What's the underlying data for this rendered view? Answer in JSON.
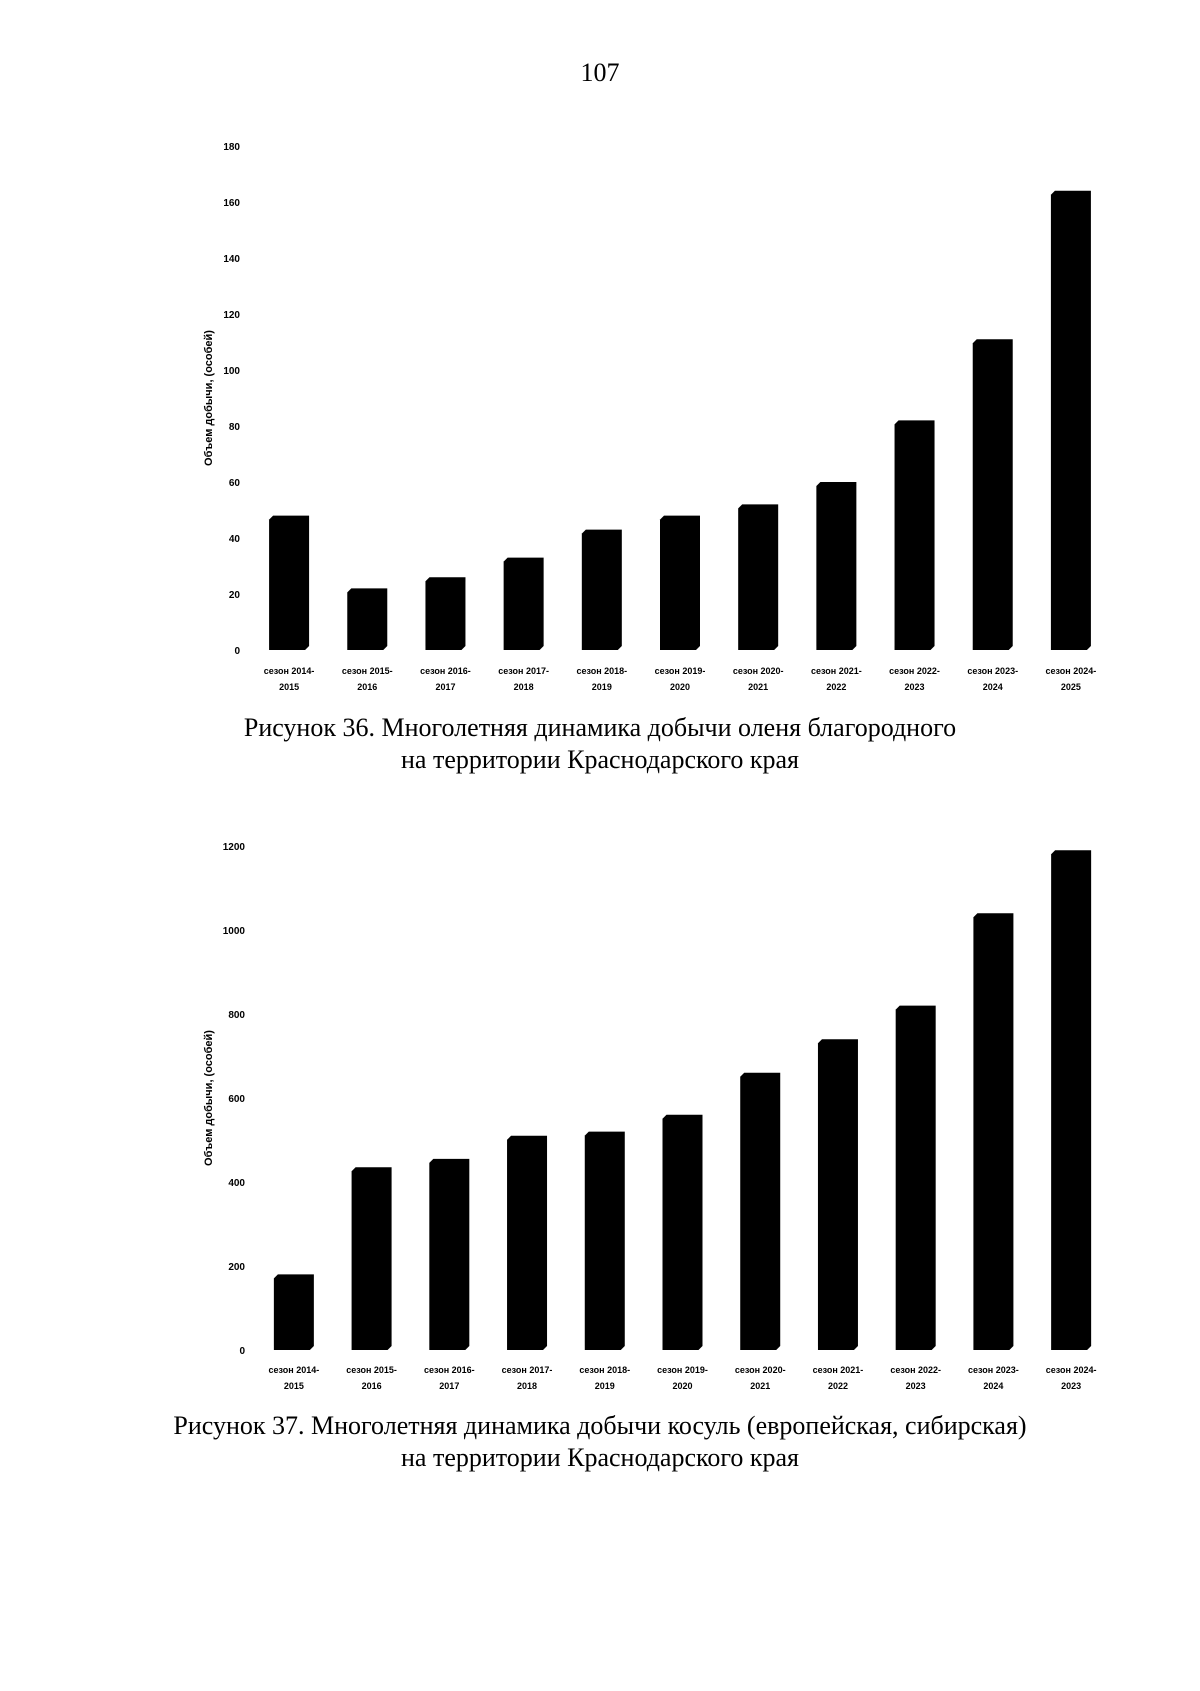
{
  "page_number": "107",
  "figures": [
    {
      "caption_line1": "Рисунок 36. Многолетняя динамика добычи оленя благородного",
      "caption_line2": "на территории Краснодарского края"
    },
    {
      "caption_line1": "Рисунок 37. Многолетняя динамика добычи косуль (европейская, сибирская)",
      "caption_line2": "на территории Краснодарского края"
    }
  ],
  "chart_data": [
    {
      "type": "bar",
      "title": "",
      "ylabel": "Объем добычи, (особей)",
      "xlabel": "",
      "ylim": [
        0,
        180
      ],
      "yticks": [
        "0",
        "20",
        "40",
        "60",
        "80",
        "100",
        "120",
        "140",
        "160",
        "180"
      ],
      "categories": [
        [
          "сезон 2014-",
          "2015"
        ],
        [
          "сезон 2015-",
          "2016"
        ],
        [
          "сезон 2016-",
          "2017"
        ],
        [
          "сезон 2017-",
          "2018"
        ],
        [
          "сезон 2018-",
          "2019"
        ],
        [
          "сезон 2019-",
          "2020"
        ],
        [
          "сезон 2020-",
          "2021"
        ],
        [
          "сезон 2021-",
          "2022"
        ],
        [
          "сезон 2022-",
          "2023"
        ],
        [
          "сезон 2023-",
          "2024"
        ],
        [
          "сезон 2024-",
          "2025"
        ]
      ],
      "values": [
        48,
        22,
        26,
        33,
        43,
        48,
        52,
        60,
        82,
        111,
        164
      ],
      "bar_color": "#000000",
      "grid": false
    },
    {
      "type": "bar",
      "title": "",
      "ylabel": "Объем добычи, (особей)",
      "xlabel": "",
      "ylim": [
        0,
        1200
      ],
      "yticks": [
        "0",
        "200",
        "400",
        "600",
        "800",
        "1000",
        "1200"
      ],
      "categories": [
        [
          "сезон 2014-",
          "2015"
        ],
        [
          "сезон 2015-",
          "2016"
        ],
        [
          "сезон 2016-",
          "2017"
        ],
        [
          "сезон 2017-",
          "2018"
        ],
        [
          "сезон 2018-",
          "2019"
        ],
        [
          "сезон 2019-",
          "2020"
        ],
        [
          "сезон 2020-",
          "2021"
        ],
        [
          "сезон 2021-",
          "2022"
        ],
        [
          "сезон 2022-",
          "2023"
        ],
        [
          "сезон 2023-",
          "2024"
        ],
        [
          "сезон 2024-",
          "2023"
        ]
      ],
      "values": [
        180,
        435,
        455,
        510,
        520,
        560,
        660,
        740,
        820,
        1040,
        1190
      ],
      "bar_color": "#000000",
      "grid": false
    }
  ]
}
